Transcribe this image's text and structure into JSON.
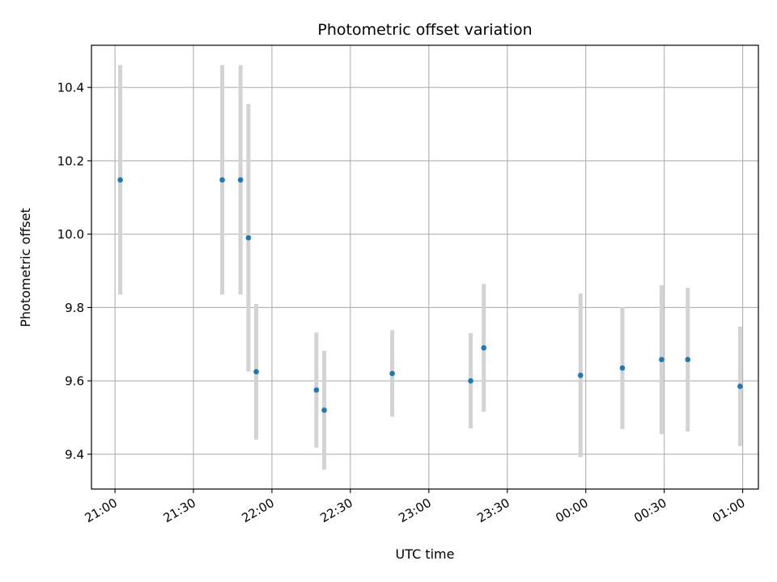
{
  "chart_data": {
    "type": "scatter",
    "title": "Photometric offset variation",
    "xlabel": "UTC time",
    "ylabel": "Photometric offset",
    "x_ticks": [
      "21:00",
      "21:30",
      "22:00",
      "22:30",
      "23:00",
      "23:30",
      "00:00",
      "00:30",
      "01:00"
    ],
    "y_ticks": [
      "9.4",
      "9.6",
      "9.8",
      "10.0",
      "10.2",
      "10.4"
    ],
    "xlim": [
      "20:51",
      "01:06"
    ],
    "ylim": [
      9.305,
      10.515
    ],
    "grid": true,
    "marker_color": "#1f77b4",
    "errorbar_color": "#d3d3d3",
    "points": [
      {
        "time": "21:02",
        "y": 10.148,
        "yerr": 0.313
      },
      {
        "time": "21:41",
        "y": 10.148,
        "yerr": 0.313
      },
      {
        "time": "21:48",
        "y": 10.148,
        "yerr": 0.313
      },
      {
        "time": "21:51",
        "y": 9.99,
        "yerr": 0.365
      },
      {
        "time": "21:54",
        "y": 9.625,
        "yerr": 0.185
      },
      {
        "time": "22:17",
        "y": 9.575,
        "yerr": 0.157
      },
      {
        "time": "22:20",
        "y": 9.52,
        "yerr": 0.162
      },
      {
        "time": "22:46",
        "y": 9.62,
        "yerr": 0.118
      },
      {
        "time": "23:16",
        "y": 9.6,
        "yerr": 0.13
      },
      {
        "time": "23:21",
        "y": 9.69,
        "yerr": 0.174
      },
      {
        "time": "23:58",
        "y": 9.615,
        "yerr": 0.223
      },
      {
        "time": "00:14",
        "y": 9.635,
        "yerr": 0.166
      },
      {
        "time": "00:29",
        "y": 9.658,
        "yerr": 0.203
      },
      {
        "time": "00:39",
        "y": 9.658,
        "yerr": 0.196
      },
      {
        "time": "00:59",
        "y": 9.585,
        "yerr": 0.163
      }
    ]
  }
}
